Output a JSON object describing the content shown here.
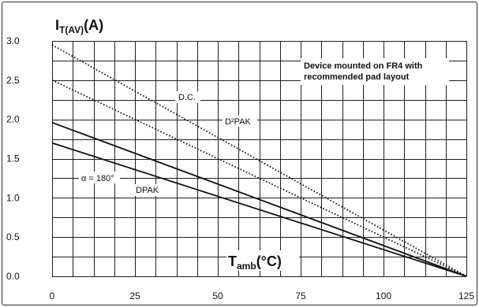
{
  "chart_data": {
    "type": "line",
    "ylabel_main": "I",
    "ylabel_sub": "T(AV)",
    "ylabel_unit": "(A)",
    "xlabel_main": "T",
    "xlabel_sub": "amb",
    "xlabel_unit": "(°C)",
    "xlim": [
      0,
      125
    ],
    "ylim": [
      0,
      3.0
    ],
    "x_ticks": [
      0,
      25,
      50,
      75,
      100,
      125
    ],
    "x_tick_labels": [
      "0",
      "25",
      "50",
      "75",
      "100",
      "125"
    ],
    "y_ticks": [
      0,
      0.5,
      1.0,
      1.5,
      2.0,
      2.5,
      3.0
    ],
    "y_tick_labels": [
      "0.0",
      "0.5",
      "1.0",
      "1.5",
      "2.0",
      "2.5",
      "3.0"
    ],
    "grid": true,
    "series": [
      {
        "name": "D.C.",
        "style": "dotted",
        "x": [
          0,
          125
        ],
        "y": [
          2.95,
          0
        ]
      },
      {
        "name": "D²PAK",
        "style": "dotted",
        "x": [
          0,
          125
        ],
        "y": [
          2.5,
          0
        ]
      },
      {
        "name": "",
        "style": "solid",
        "x": [
          0,
          125
        ],
        "y": [
          1.96,
          0
        ]
      },
      {
        "name": "DPAK",
        "style": "solid",
        "x": [
          0,
          125
        ],
        "y": [
          1.7,
          0
        ]
      }
    ],
    "annotations": {
      "mounting_line1": "Device mounted on FR4 with",
      "mounting_line2": "recommended pad layout",
      "alpha": "α = 180°"
    }
  }
}
